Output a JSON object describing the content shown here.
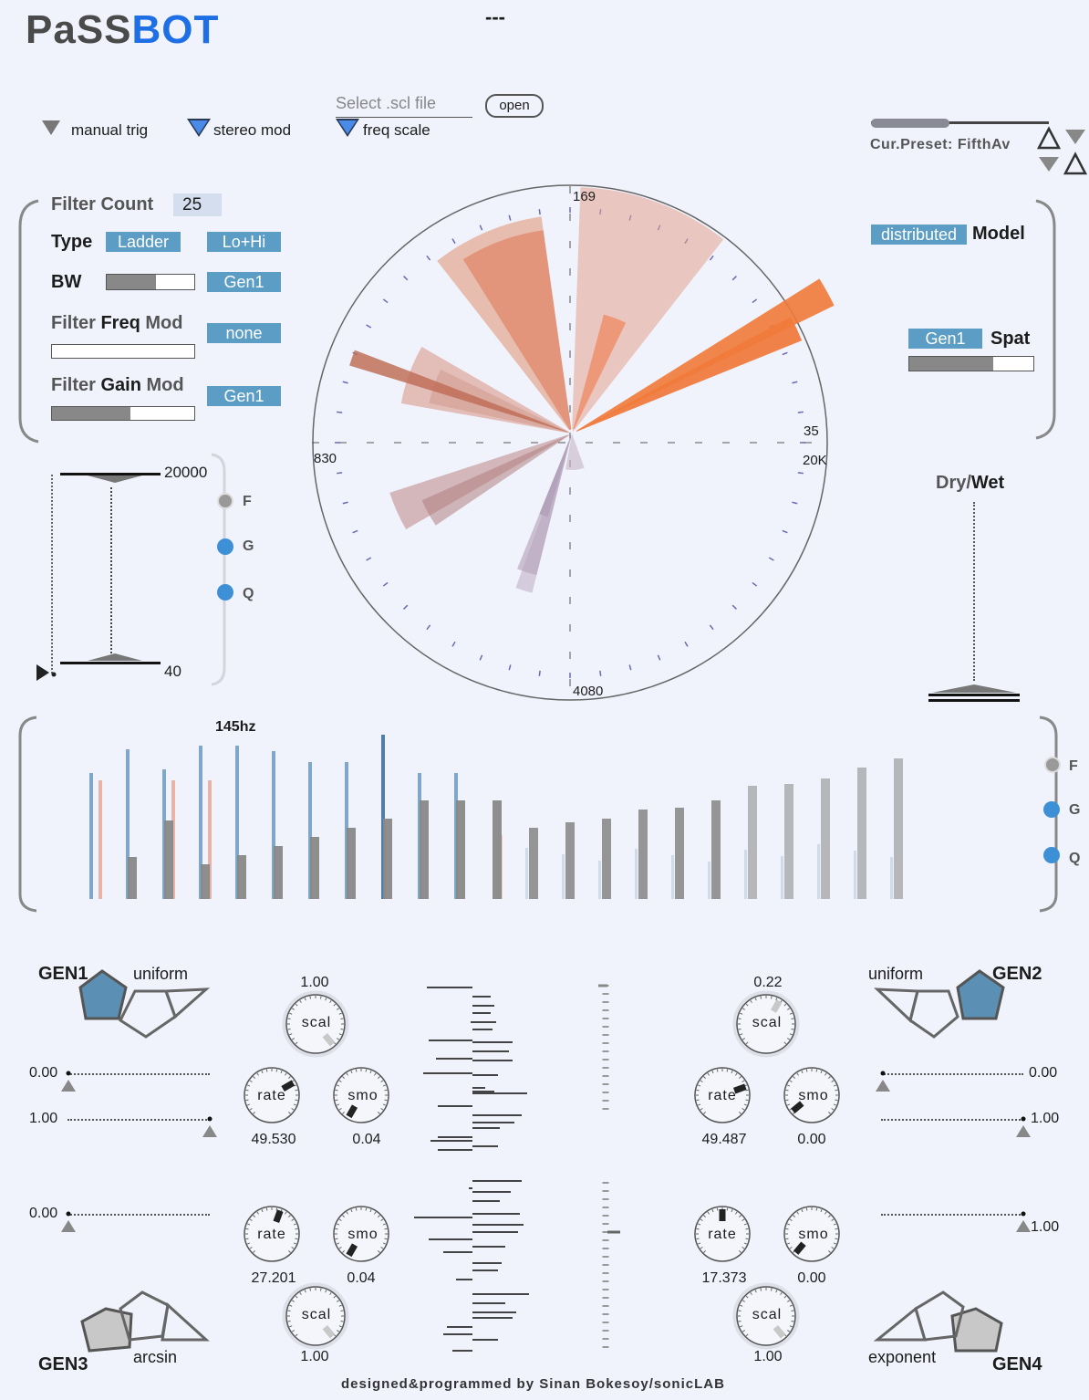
{
  "app": {
    "title_part1": "PaSS",
    "title_part2": "BOT",
    "status": "---"
  },
  "top": {
    "manual_trig": "manual trig",
    "stereo_mod": "stereo mod",
    "scl_placeholder": "Select .scl file",
    "open_label": "open",
    "freq_scale": "freq scale",
    "preset_label": "Cur.Preset: FifthAv",
    "preset_progress": 0.44
  },
  "filter": {
    "count_label": "Filter Count",
    "count_value": "25",
    "type_label": "Type",
    "type_value": "Ladder",
    "type_mode": "Lo+Hi",
    "bw_label": "BW",
    "bw_level": 0.5,
    "bw_source": "Gen1",
    "freq_mod_label_1": "Filter ",
    "freq_mod_label_2": "Freq",
    "freq_mod_label_3": " Mod",
    "freq_mod_source": "none",
    "freq_mod_level": 0,
    "gain_mod_label_1": "Filter ",
    "gain_mod_label_2": "Gain",
    "gain_mod_label_3": " Mod",
    "gain_mod_source": "Gen1",
    "gain_mod_level": 0.55
  },
  "model": {
    "value": "distributed",
    "label": "Model",
    "spat_source": "Gen1",
    "spat_label": "Spat",
    "spat_level": 0.68
  },
  "range": {
    "max": "20000",
    "min": "40",
    "fgq": [
      "F",
      "G",
      "Q"
    ]
  },
  "dial": {
    "top": "169",
    "left": "830",
    "right_top": "35",
    "right": "20K",
    "bottom": "4080"
  },
  "drywet": {
    "label_1": "Dry/",
    "label_2": "Wet"
  },
  "spectrum": {
    "freq_label": "145hz",
    "fgq": [
      "F",
      "G",
      "Q"
    ]
  },
  "gen1": {
    "title": "GEN1",
    "dist": "uniform",
    "min": "0.00",
    "max": "1.00",
    "scal": "1.00",
    "rate": "49.530",
    "smo": "0.04"
  },
  "gen2": {
    "title": "GEN2",
    "dist": "uniform",
    "min": "0.00",
    "max": "1.00",
    "scal": "0.22",
    "rate": "49.487",
    "smo": "0.00"
  },
  "gen3": {
    "title": "GEN3",
    "dist": "arcsin",
    "min": "0.00",
    "scal": "1.00",
    "rate": "27.201",
    "smo": "0.04"
  },
  "gen4": {
    "title": "GEN4",
    "dist": "exponent",
    "max": "1.00",
    "scal": "1.00",
    "rate": "17.373",
    "smo": "0.00"
  },
  "knob_labels": {
    "scal": "scal",
    "rate": "rate",
    "smo": "smo"
  },
  "footer": "designed&programmed by Sinan Bokesoy/sonicLAB",
  "colors": {
    "accent": "#1e6fe6",
    "chip": "#5b9dc4",
    "wedge": "#e89a7f",
    "dot_blue": "#3d8fd6"
  }
}
